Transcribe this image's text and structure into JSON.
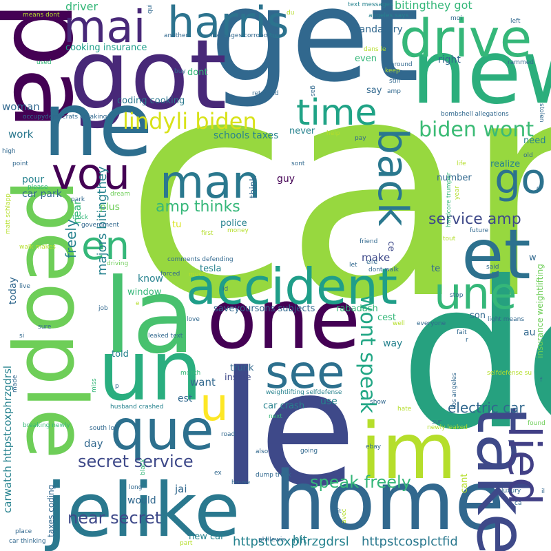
{
  "palette": {
    "background": "#ffffff",
    "colors": [
      "#440154",
      "#482878",
      "#3e4989",
      "#31688e",
      "#26828e",
      "#1f9e89",
      "#35b779",
      "#6ece58",
      "#97d83f",
      "#b5de2b",
      "#d8e219",
      "#fde725"
    ]
  },
  "words": [
    {
      "text": "car",
      "color": "#97d83f"
    },
    {
      "text": "de",
      "color": "#26a17f"
    },
    {
      "text": "get",
      "color": "#31688e"
    },
    {
      "text": "new",
      "color": "#2bae7c"
    },
    {
      "text": "le",
      "color": "#3e4989"
    },
    {
      "text": "got",
      "color": "#482878"
    },
    {
      "text": "pa",
      "color": "#440154"
    },
    {
      "text": "ne",
      "color": "#2d6e8e"
    },
    {
      "text": "one",
      "color": "#440154"
    },
    {
      "text": "la",
      "color": "#48c16e"
    },
    {
      "text": "un",
      "color": "#2aae7f"
    },
    {
      "text": "people",
      "color": "#6ece58"
    },
    {
      "text": "home",
      "color": "#31688e"
    },
    {
      "text": "jelike",
      "color": "#2a788e"
    },
    {
      "text": "im",
      "color": "#b5de2b"
    },
    {
      "text": "take",
      "color": "#3e4989"
    },
    {
      "text": "lied",
      "color": "#424086"
    },
    {
      "text": "drive",
      "color": "#35b779"
    },
    {
      "text": "harris",
      "color": "#2c738e"
    },
    {
      "text": "mai",
      "color": "#482878"
    },
    {
      "text": "accident",
      "color": "#1f9e89"
    },
    {
      "text": "que",
      "color": "#2d708e"
    },
    {
      "text": "et",
      "color": "#2d718e"
    },
    {
      "text": "une",
      "color": "#35b779"
    },
    {
      "text": "see",
      "color": "#2d708e"
    },
    {
      "text": "man",
      "color": "#2a788e"
    },
    {
      "text": "vou",
      "color": "#440154"
    },
    {
      "text": "go",
      "color": "#2c728e"
    },
    {
      "text": "en",
      "color": "#35b779"
    },
    {
      "text": "back",
      "color": "#2a788e"
    },
    {
      "text": "time",
      "color": "#20a386"
    },
    {
      "text": "u",
      "color": "#fde725"
    },
    {
      "text": "lindyli biden",
      "color": "#d8e219"
    },
    {
      "text": "biden wont",
      "color": "#3bbb75"
    },
    {
      "text": "wont speak",
      "color": "#22a785"
    },
    {
      "text": "speak freely",
      "color": "#35b779"
    },
    {
      "text": "amp thinks",
      "color": "#35b779"
    },
    {
      "text": "service amp",
      "color": "#3e4989"
    },
    {
      "text": "secret service",
      "color": "#3e4989"
    },
    {
      "text": "near secret",
      "color": "#3e4989"
    },
    {
      "text": "majors bitingthey",
      "color": "#26828e"
    },
    {
      "text": "freely",
      "color": "#26828e"
    },
    {
      "text": "electric car",
      "color": "#31688e"
    },
    {
      "text": "httpstcosplctfid",
      "color": "#2a788e"
    },
    {
      "text": "httpstcoxphrzgdrsl",
      "color": "#26828e"
    },
    {
      "text": "carwatch httpstcoxphrzgdrsl",
      "color": "#26828e"
    },
    {
      "text": "bitingthey got",
      "color": "#35b779"
    },
    {
      "text": "mandatory",
      "color": "#31688e"
    },
    {
      "text": "driver",
      "color": "#35b779"
    },
    {
      "text": "cooking insurance",
      "color": "#1f9e89"
    },
    {
      "text": "coding cooking",
      "color": "#2a788e"
    },
    {
      "text": "woman",
      "color": "#31688e"
    },
    {
      "text": "work",
      "color": "#2a788e"
    },
    {
      "text": "schools taxes",
      "color": "#26828e"
    },
    {
      "text": "car park",
      "color": "#31688e"
    },
    {
      "text": "pour",
      "color": "#26828e"
    },
    {
      "text": "plus",
      "color": "#6ece58"
    },
    {
      "text": "near",
      "color": "#35b779"
    },
    {
      "text": "police",
      "color": "#26828e"
    },
    {
      "text": "tesla",
      "color": "#26828e"
    },
    {
      "text": "know",
      "color": "#26828e"
    },
    {
      "text": "window",
      "color": "#35b779"
    },
    {
      "text": "make",
      "color": "#3e4989"
    },
    {
      "text": "saveyoursons subjects",
      "color": "#31688e"
    },
    {
      "text": "rabadash",
      "color": "#35b779"
    },
    {
      "text": "cest",
      "color": "#35b779"
    },
    {
      "text": "today",
      "color": "#31688e"
    },
    {
      "text": "guy",
      "color": "#440154"
    },
    {
      "text": "think",
      "color": "#31688e"
    },
    {
      "text": "number",
      "color": "#31688e"
    },
    {
      "text": "realize",
      "color": "#26828e"
    },
    {
      "text": "need",
      "color": "#26828e"
    },
    {
      "text": "even",
      "color": "#35b779"
    },
    {
      "text": "right",
      "color": "#31688e"
    },
    {
      "text": "say",
      "color": "#31688e"
    },
    {
      "text": "never",
      "color": "#26828e"
    },
    {
      "text": "dont",
      "color": "#35b779"
    },
    {
      "text": "trunk",
      "color": "#31688e"
    },
    {
      "text": "inside",
      "color": "#3e4989"
    },
    {
      "text": "want",
      "color": "#31688e"
    },
    {
      "text": "est",
      "color": "#31688e"
    },
    {
      "text": "use",
      "color": "#26828e"
    },
    {
      "text": "car crash",
      "color": "#26828e"
    },
    {
      "text": "day",
      "color": "#31688e"
    },
    {
      "text": "told",
      "color": "#26828e"
    },
    {
      "text": "jai",
      "color": "#31688e"
    },
    {
      "text": "would",
      "color": "#31688e"
    },
    {
      "text": "hit",
      "color": "#26828e"
    },
    {
      "text": "new car",
      "color": "#26828e"
    },
    {
      "text": "way",
      "color": "#26828e"
    },
    {
      "text": "au",
      "color": "#31688e"
    },
    {
      "text": "son",
      "color": "#31688e"
    },
    {
      "text": "te",
      "color": "#31688e"
    },
    {
      "text": "w",
      "color": "#31688e"
    },
    {
      "text": "ce",
      "color": "#3e4989"
    },
    {
      "text": "cant",
      "color": "#b5de2b"
    },
    {
      "text": "taxes coding",
      "color": "#31688e"
    },
    {
      "text": "tu",
      "color": "#d8e219"
    },
    {
      "text": "insurance weightlifting",
      "color": "#6ece58"
    },
    {
      "text": "hardcore trumper",
      "color": "#35b779"
    },
    {
      "text": "bombshell allegations",
      "color": "#31688e"
    },
    {
      "text": "stolen",
      "color": "#31688e"
    },
    {
      "text": "light means",
      "color": "#31688e"
    },
    {
      "text": "everyone",
      "color": "#31688e"
    },
    {
      "text": "text messages",
      "color": "#26828e"
    },
    {
      "text": "angeles says",
      "color": "#26828e"
    },
    {
      "text": "messages corroborate",
      "color": "#31688e"
    },
    {
      "text": "another",
      "color": "#31688e"
    },
    {
      "text": "means dont",
      "color": "#b5de2b"
    },
    {
      "text": "used",
      "color": "#35b779"
    },
    {
      "text": "occupydemocrats breaking",
      "color": "#31688e"
    },
    {
      "text": "returned",
      "color": "#31688e"
    },
    {
      "text": "high",
      "color": "#31688e"
    },
    {
      "text": "point",
      "color": "#31688e"
    },
    {
      "text": "please",
      "color": "#35b779"
    },
    {
      "text": "matt schlapp",
      "color": "#b5de2b"
    },
    {
      "text": "truck",
      "color": "#35b779"
    },
    {
      "text": "government",
      "color": "#31688e"
    },
    {
      "text": "walk makes",
      "color": "#b5de2b"
    },
    {
      "text": "dream",
      "color": "#6ece58"
    },
    {
      "text": "park",
      "color": "#31688e"
    },
    {
      "text": "money",
      "color": "#b5de2b"
    },
    {
      "text": "first",
      "color": "#b5de2b"
    },
    {
      "text": "driving",
      "color": "#6ece58"
    },
    {
      "text": "comments defending",
      "color": "#31688e"
    },
    {
      "text": "forced",
      "color": "#31688e"
    },
    {
      "text": "much",
      "color": "#b5de2b"
    },
    {
      "text": "live",
      "color": "#31688e"
    },
    {
      "text": "leaked text",
      "color": "#31688e"
    },
    {
      "text": "job",
      "color": "#31688e"
    },
    {
      "text": "love",
      "color": "#31688e"
    },
    {
      "text": "sure",
      "color": "#31688e"
    },
    {
      "text": "si",
      "color": "#31688e"
    },
    {
      "text": "month",
      "color": "#35b779"
    },
    {
      "text": "husband crashed",
      "color": "#26828e"
    },
    {
      "text": "breaking newly",
      "color": "#35b779"
    },
    {
      "text": "made",
      "color": "#31688e"
    },
    {
      "text": "miss",
      "color": "#35b779"
    },
    {
      "text": "south los",
      "color": "#31688e"
    },
    {
      "text": "weightlifting selfdefense",
      "color": "#26828e"
    },
    {
      "text": "selfdefense su",
      "color": "#b5de2b"
    },
    {
      "text": "los angeles",
      "color": "#31688e"
    },
    {
      "text": "newly leaked",
      "color": "#b5de2b"
    },
    {
      "text": "road",
      "color": "#31688e"
    },
    {
      "text": "also",
      "color": "#31688e"
    },
    {
      "text": "going",
      "color": "#31688e"
    },
    {
      "text": "ebay",
      "color": "#31688e"
    },
    {
      "text": "dump truck",
      "color": "#31688e"
    },
    {
      "text": "house",
      "color": "#31688e"
    },
    {
      "text": "long",
      "color": "#31688e"
    },
    {
      "text": "black",
      "color": "#35b779"
    },
    {
      "text": "ex",
      "color": "#31688e"
    },
    {
      "text": "luxury",
      "color": "#31688e"
    },
    {
      "text": "phillewis",
      "color": "#31688e"
    },
    {
      "text": "place",
      "color": "#31688e"
    },
    {
      "text": "car thinking",
      "color": "#31688e"
    },
    {
      "text": "part",
      "color": "#b5de2b"
    },
    {
      "text": "avec",
      "color": "#b5de2b"
    },
    {
      "text": "dit",
      "color": "#31688e"
    },
    {
      "text": "il",
      "color": "#31688e"
    },
    {
      "text": "ca",
      "color": "#31688e"
    },
    {
      "text": "found",
      "color": "#6ece58"
    },
    {
      "text": "hate",
      "color": "#b5de2b"
    },
    {
      "text": "show",
      "color": "#31688e"
    },
    {
      "text": "next",
      "color": "#35b779"
    },
    {
      "text": "sur",
      "color": "#31688e"
    },
    {
      "text": "f",
      "color": "#31688e"
    },
    {
      "text": "p",
      "color": "#31688e"
    },
    {
      "text": "e",
      "color": "#b5de2b"
    },
    {
      "text": "r",
      "color": "#31688e"
    },
    {
      "text": "fait",
      "color": "#31688e"
    },
    {
      "text": "well",
      "color": "#b5de2b"
    },
    {
      "text": "stop",
      "color": "#31688e"
    },
    {
      "text": "id",
      "color": "#31688e"
    },
    {
      "text": "elle",
      "color": "#31688e"
    },
    {
      "text": "dont walk",
      "color": "#31688e"
    },
    {
      "text": "let",
      "color": "#31688e"
    },
    {
      "text": "said",
      "color": "#31688e"
    },
    {
      "text": "future",
      "color": "#31688e"
    },
    {
      "text": "tout",
      "color": "#b5de2b"
    },
    {
      "text": "friend",
      "color": "#31688e"
    },
    {
      "text": "year",
      "color": "#b5de2b"
    },
    {
      "text": "c",
      "color": "#31688e"
    },
    {
      "text": "life",
      "color": "#b5de2b"
    },
    {
      "text": "old",
      "color": "#31688e"
    },
    {
      "text": "sont",
      "color": "#31688e"
    },
    {
      "text": "pay",
      "color": "#31688e"
    },
    {
      "text": "help",
      "color": "#b5de2b"
    },
    {
      "text": "gas",
      "color": "#31688e"
    },
    {
      "text": "amp",
      "color": "#31688e"
    },
    {
      "text": "still",
      "color": "#31688e"
    },
    {
      "text": "keep",
      "color": "#b5de2b"
    },
    {
      "text": "around",
      "color": "#31688e"
    },
    {
      "text": "rammed",
      "color": "#31688e"
    },
    {
      "text": "left",
      "color": "#31688e"
    },
    {
      "text": "moi",
      "color": "#31688e"
    },
    {
      "text": "family",
      "color": "#31688e"
    },
    {
      "text": "du",
      "color": "#b5de2b"
    },
    {
      "text": "dans le",
      "color": "#b5de2b"
    },
    {
      "text": "qui",
      "color": "#31688e"
    },
    {
      "text": "buy",
      "color": "#31688e"
    }
  ]
}
